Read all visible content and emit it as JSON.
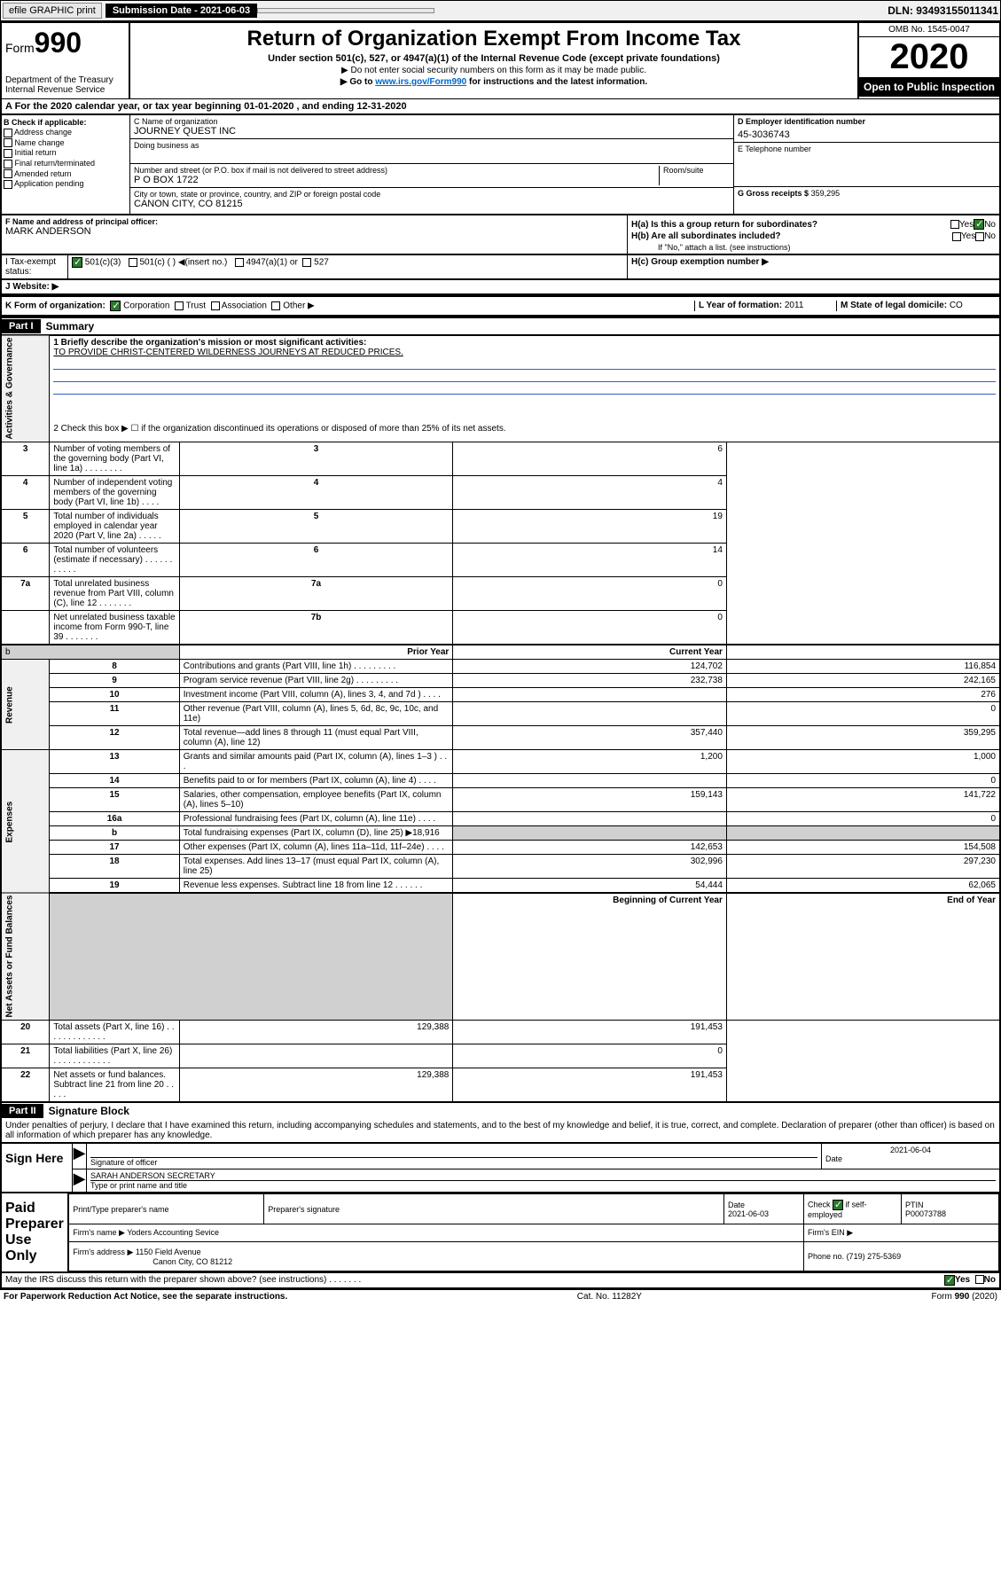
{
  "header": {
    "efile": "efile GRAPHIC print",
    "submission_label": "Submission Date - 2021-06-03",
    "dln": "DLN: 93493155011341"
  },
  "form_top": {
    "form_label": "Form",
    "form_num": "990",
    "dept": "Department of the Treasury\nInternal Revenue Service",
    "title": "Return of Organization Exempt From Income Tax",
    "subtitle": "Under section 501(c), 527, or 4947(a)(1) of the Internal Revenue Code (except private foundations)",
    "instr1": "▶ Do not enter social security numbers on this form as it may be made public.",
    "instr2_pre": "▶ Go to ",
    "instr2_link": "www.irs.gov/Form990",
    "instr2_post": " for instructions and the latest information.",
    "omb": "OMB No. 1545-0047",
    "year": "2020",
    "otp": "Open to Public Inspection"
  },
  "tax_year": "A For the 2020 calendar year, or tax year beginning 01-01-2020   , and ending 12-31-2020",
  "section_b": {
    "label": "B Check if applicable:",
    "items": [
      "Address change",
      "Name change",
      "Initial return",
      "Final return/terminated",
      "Amended return",
      "Application pending"
    ]
  },
  "section_c": {
    "name_label": "C Name of organization",
    "name": "JOURNEY QUEST INC",
    "dba_label": "Doing business as",
    "addr_label": "Number and street (or P.O. box if mail is not delivered to street address)",
    "room_label": "Room/suite",
    "addr": "P O BOX 1722",
    "city_label": "City or town, state or province, country, and ZIP or foreign postal code",
    "city": "CANON CITY, CO  81215"
  },
  "section_d": {
    "label": "D Employer identification number",
    "value": "45-3036743"
  },
  "section_e": {
    "label": "E Telephone number",
    "value": ""
  },
  "section_g": {
    "label": "G Gross receipts $",
    "value": "359,295"
  },
  "section_f": {
    "label": "F Name and address of principal officer:",
    "name": "MARK ANDERSON"
  },
  "section_h": {
    "ha": "H(a) Is this a group return for subordinates?",
    "hb": "H(b) Are all subordinates included?",
    "hb_note": "If \"No,\" attach a list. (see instructions)",
    "hc": "H(c) Group exemption number ▶",
    "yes": "Yes",
    "no": "No"
  },
  "row_i": {
    "label": "I   Tax-exempt status:",
    "opt1": "501(c)(3)",
    "opt2": "501(c) (  ) ◀(insert no.)",
    "opt3": "4947(a)(1) or",
    "opt4": "527"
  },
  "row_j": {
    "label": "J   Website: ▶"
  },
  "row_k": {
    "label": "K Form of organization:",
    "opts": [
      "Corporation",
      "Trust",
      "Association",
      "Other ▶"
    ],
    "l_label": "L Year of formation:",
    "l_val": "2011",
    "m_label": "M State of legal domicile:",
    "m_val": "CO"
  },
  "part1": {
    "header": "Part I",
    "title": "Summary"
  },
  "summary": {
    "line1_label": "1  Briefly describe the organization's mission or most significant activities:",
    "line1_text": "TO PROVIDE CHRIST-CENTERED WILDERNESS JOURNEYS AT REDUCED PRICES.",
    "line2": "2   Check this box ▶ ☐  if the organization discontinued its operations or disposed of more than 25% of its net assets.",
    "rows_gov": [
      {
        "n": "3",
        "d": "Number of voting members of the governing body (Part VI, line 1a)  .  .  .  .  .  .  .  .",
        "b": "3",
        "v": "6"
      },
      {
        "n": "4",
        "d": "Number of independent voting members of the governing body (Part VI, line 1b)  .  .  .  .",
        "b": "4",
        "v": "4"
      },
      {
        "n": "5",
        "d": "Total number of individuals employed in calendar year 2020 (Part V, line 2a)  .  .  .  .  .",
        "b": "5",
        "v": "19"
      },
      {
        "n": "6",
        "d": "Total number of volunteers (estimate if necessary)  .  .  .  .  .  .  .  .  .  .  .",
        "b": "6",
        "v": "14"
      },
      {
        "n": "7a",
        "d": "Total unrelated business revenue from Part VIII, column (C), line 12  .  .  .  .  .  .  .",
        "b": "7a",
        "v": "0"
      },
      {
        "n": "",
        "d": "Net unrelated business taxable income from Form 990-T, line 39  .  .  .  .  .  .  .",
        "b": "7b",
        "v": "0"
      }
    ],
    "prior_label": "Prior Year",
    "curr_label": "Current Year",
    "rows_rev": [
      {
        "n": "8",
        "d": "Contributions and grants (Part VIII, line 1h)  .  .  .  .  .  .  .  .  .",
        "p": "124,702",
        "c": "116,854"
      },
      {
        "n": "9",
        "d": "Program service revenue (Part VIII, line 2g)  .  .  .  .  .  .  .  .  .",
        "p": "232,738",
        "c": "242,165"
      },
      {
        "n": "10",
        "d": "Investment income (Part VIII, column (A), lines 3, 4, and 7d )  .  .  .  .",
        "p": "",
        "c": "276"
      },
      {
        "n": "11",
        "d": "Other revenue (Part VIII, column (A), lines 5, 6d, 8c, 9c, 10c, and 11e)",
        "p": "",
        "c": "0"
      },
      {
        "n": "12",
        "d": "Total revenue—add lines 8 through 11 (must equal Part VIII, column (A), line 12)",
        "p": "357,440",
        "c": "359,295"
      }
    ],
    "rows_exp": [
      {
        "n": "13",
        "d": "Grants and similar amounts paid (Part IX, column (A), lines 1–3 )  .  .  .",
        "p": "1,200",
        "c": "1,000"
      },
      {
        "n": "14",
        "d": "Benefits paid to or for members (Part IX, column (A), line 4)  .  .  .  .",
        "p": "",
        "c": "0"
      },
      {
        "n": "15",
        "d": "Salaries, other compensation, employee benefits (Part IX, column (A), lines 5–10)",
        "p": "159,143",
        "c": "141,722"
      },
      {
        "n": "16a",
        "d": "Professional fundraising fees (Part IX, column (A), line 11e)  .  .  .  .",
        "p": "",
        "c": "0"
      },
      {
        "n": "b",
        "d": "Total fundraising expenses (Part IX, column (D), line 25) ▶18,916",
        "p": null,
        "c": null
      },
      {
        "n": "17",
        "d": "Other expenses (Part IX, column (A), lines 11a–11d, 11f–24e)  .  .  .  .",
        "p": "142,653",
        "c": "154,508"
      },
      {
        "n": "18",
        "d": "Total expenses. Add lines 13–17 (must equal Part IX, column (A), line 25)",
        "p": "302,996",
        "c": "297,230"
      },
      {
        "n": "19",
        "d": "Revenue less expenses. Subtract line 18 from line 12  .  .  .  .  .  .",
        "p": "54,444",
        "c": "62,065"
      }
    ],
    "begin_label": "Beginning of Current Year",
    "end_label": "End of Year",
    "rows_net": [
      {
        "n": "20",
        "d": "Total assets (Part X, line 16)  .  .  .  .  .  .  .  .  .  .  .  .  .",
        "p": "129,388",
        "c": "191,453"
      },
      {
        "n": "21",
        "d": "Total liabilities (Part X, line 26)  .  .  .  .  .  .  .  .  .  .  .  .",
        "p": "",
        "c": "0"
      },
      {
        "n": "22",
        "d": "Net assets or fund balances. Subtract line 21 from line 20  .  .  .  .  .",
        "p": "129,388",
        "c": "191,453"
      }
    ],
    "side_labels": {
      "gov": "Activities & Governance",
      "rev": "Revenue",
      "exp": "Expenses",
      "net": "Net Assets or Fund Balances"
    }
  },
  "part2": {
    "header": "Part II",
    "title": "Signature Block"
  },
  "perjury": "Under penalties of perjury, I declare that I have examined this return, including accompanying schedules and statements, and to the best of my knowledge and belief, it is true, correct, and complete. Declaration of preparer (other than officer) is based on all information of which preparer has any knowledge.",
  "sign": {
    "left": "Sign Here",
    "sig_label": "Signature of officer",
    "date_label": "Date",
    "date": "2021-06-04",
    "name": "SARAH ANDERSON  SECRETARY",
    "name_label": "Type or print name and title"
  },
  "prep": {
    "left": "Paid Preparer Use Only",
    "cols": [
      "Print/Type preparer's name",
      "Preparer's signature",
      "Date",
      "Check ☑ if self-employed",
      "PTIN"
    ],
    "date": "2021-06-03",
    "ptin": "P00073788",
    "firm_name_label": "Firm's name   ▶",
    "firm_name": "Yoders Accounting Sevice",
    "firm_ein_label": "Firm's EIN ▶",
    "firm_addr_label": "Firm's address ▶",
    "firm_addr": "1150 Field Avenue",
    "firm_city": "Canon City, CO  81212",
    "phone_label": "Phone no.",
    "phone": "(719) 275-5369"
  },
  "discuss": "May the IRS discuss this return with the preparer shown above? (see instructions)  .  .  .  .  .  .  .",
  "footer": {
    "notice": "For Paperwork Reduction Act Notice, see the separate instructions.",
    "cat": "Cat. No. 11282Y",
    "form": "Form 990 (2020)"
  }
}
